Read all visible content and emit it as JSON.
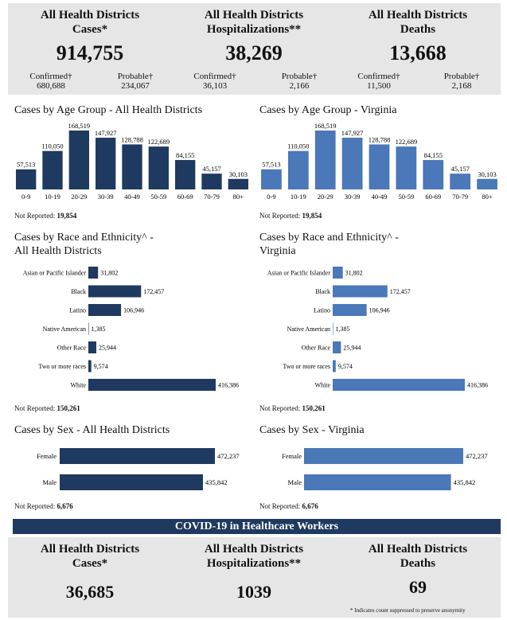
{
  "summary": {
    "cases": {
      "title_line1": "All Health Districts",
      "title_line2": "Cases*",
      "total": "914,755",
      "confirmed_label": "Confirmed†",
      "confirmed": "680,688",
      "probable_label": "Probable†",
      "probable": "234,067"
    },
    "hospitalizations": {
      "title_line1": "All Health Districts",
      "title_line2": "Hospitalizations**",
      "total": "38,269",
      "confirmed_label": "Confirmed†",
      "confirmed": "36,103",
      "probable_label": "Probable†",
      "probable": "2,166"
    },
    "deaths": {
      "title_line1": "All Health Districts",
      "title_line2": "Deaths",
      "total": "13,668",
      "confirmed_label": "Confirmed†",
      "confirmed": "11,500",
      "probable_label": "Probable†",
      "probable": "2,168"
    }
  },
  "colors": {
    "dark": "#1f3a60",
    "light": "#4a78b8"
  },
  "not_reported_label": "Not Reported:",
  "chart_data": [
    {
      "id": "age-all",
      "type": "bar",
      "title": "Cases by Age Group - All Health Districts",
      "categories": [
        "0-9",
        "10-19",
        "20-29",
        "30-39",
        "40-49",
        "50-59",
        "60-69",
        "70-79",
        "80+"
      ],
      "values": [
        57513,
        110050,
        168519,
        147927,
        128788,
        122689,
        84155,
        45157,
        30103
      ],
      "labels": [
        "57,513",
        "110,050",
        "168,519",
        "147,927",
        "128,788",
        "122,689",
        "84,155",
        "45,157",
        "30,103"
      ],
      "not_reported": "19,854",
      "color": "dark"
    },
    {
      "id": "age-va",
      "type": "bar",
      "title": "Cases by Age Group - Virginia",
      "categories": [
        "0-9",
        "10-19",
        "20-29",
        "30-39",
        "40-49",
        "50-59",
        "60-69",
        "70-79",
        "80+"
      ],
      "values": [
        57513,
        110050,
        168519,
        147927,
        128788,
        122689,
        84155,
        45157,
        30103
      ],
      "labels": [
        "57,513",
        "110,050",
        "168,519",
        "147,927",
        "128,788",
        "122,689",
        "84,155",
        "45,157",
        "30,103"
      ],
      "not_reported": "19,854",
      "color": "light"
    },
    {
      "id": "race-all",
      "type": "bar",
      "orientation": "horizontal",
      "title_line1": "Cases by Race and Ethnicity^ -",
      "title_line2": "All Health Districts",
      "categories": [
        "Asian or Pacific Islander",
        "Black",
        "Latino",
        "Native American",
        "Other Race",
        "Two or more races",
        "White"
      ],
      "values": [
        31802,
        172457,
        106946,
        1385,
        25944,
        9574,
        416386
      ],
      "labels": [
        "31,802",
        "172,457",
        "106,946",
        "1,385",
        "25,944",
        "9,574",
        "416,386"
      ],
      "not_reported": "150,261",
      "color": "dark"
    },
    {
      "id": "race-va",
      "type": "bar",
      "orientation": "horizontal",
      "title_line1": "Cases by Race and Ethnicity^ -",
      "title_line2": "Virginia",
      "categories": [
        "Asian or Pacific Islander",
        "Black",
        "Latino",
        "Native American",
        "Other Race",
        "Two or more races",
        "White"
      ],
      "values": [
        31802,
        172457,
        106946,
        1385,
        25944,
        9574,
        416386
      ],
      "labels": [
        "31,802",
        "172,457",
        "106,946",
        "1,385",
        "25,944",
        "9,574",
        "416,386"
      ],
      "not_reported": "150,261",
      "color": "light"
    },
    {
      "id": "sex-all",
      "type": "bar",
      "orientation": "horizontal",
      "title": "Cases by Sex - All Health Districts",
      "categories": [
        "Female",
        "Male"
      ],
      "values": [
        472237,
        435842
      ],
      "labels": [
        "472,237",
        "435,842"
      ],
      "not_reported": "6,676",
      "color": "dark"
    },
    {
      "id": "sex-va",
      "type": "bar",
      "orientation": "horizontal",
      "title": "Cases by Sex - Virginia",
      "categories": [
        "Female",
        "Male"
      ],
      "values": [
        472237,
        435842
      ],
      "labels": [
        "472,237",
        "435,842"
      ],
      "not_reported": "6,676",
      "color": "light"
    }
  ],
  "healthcare": {
    "banner": "COVID-19 in Healthcare Workers",
    "cases": {
      "title_line1": "All Health Districts",
      "title_line2": "Cases*",
      "total": "36,685"
    },
    "hospitalizations": {
      "title_line1": "All Health Districts",
      "title_line2": "Hospitalizations**",
      "total": "1039"
    },
    "deaths": {
      "title_line1": "All Health Districts",
      "title_line2": "Deaths",
      "total": "69"
    },
    "note": "* Indicates count suppressed to preserve anonymity"
  }
}
